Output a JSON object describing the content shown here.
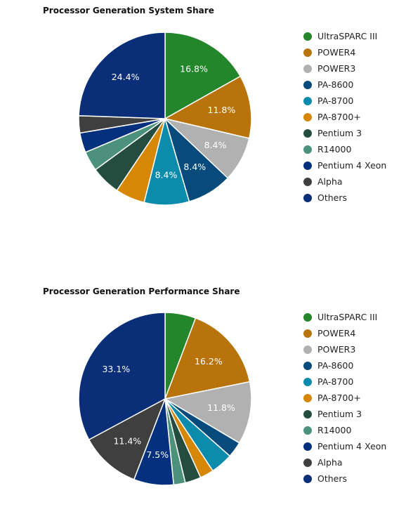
{
  "colors": {
    "UltraSPARC III": "#23862a",
    "POWER4": "#b8740b",
    "POWER3": "#b1b1b1",
    "PA-8600": "#064b7c",
    "PA-8700": "#0d8bac",
    "PA-8700+": "#d58705",
    "Pentium 3": "#244d40",
    "R14000": "#4b917b",
    "Pentium 4 Xeon": "#05307e",
    "Alpha": "#3f3f3f",
    "Others": "#0a2e78"
  },
  "chart_data": [
    {
      "type": "pie",
      "title": "Processor Generation System Share",
      "labels": [
        "UltraSPARC III",
        "POWER4",
        "POWER3",
        "PA-8600",
        "PA-8700",
        "PA-8700+",
        "Pentium 3",
        "R14000",
        "Pentium 4 Xeon",
        "Alpha",
        "Others"
      ],
      "values": [
        16.8,
        11.8,
        8.4,
        8.4,
        8.4,
        5.5,
        5.5,
        3.7,
        3.7,
        3.2,
        24.4
      ],
      "data_labels": [
        "16.8%",
        "11.8%",
        "8.4%",
        "8.4%",
        "8.4%",
        "",
        "",
        "",
        "",
        "",
        "24.4%"
      ],
      "legend_position": "right"
    },
    {
      "type": "pie",
      "title": "Processor Generation Performance Share",
      "labels": [
        "UltraSPARC III",
        "POWER4",
        "POWER3",
        "PA-8600",
        "PA-8700",
        "PA-8700+",
        "Pentium 3",
        "R14000",
        "Pentium 4 Xeon",
        "Alpha",
        "Others"
      ],
      "values": [
        5.8,
        16.2,
        11.8,
        3.0,
        4.2,
        2.6,
        3.0,
        2.2,
        7.5,
        11.4,
        33.1
      ],
      "data_labels": [
        "",
        "16.2%",
        "11.8%",
        "",
        "",
        "",
        "",
        "",
        "7.5%",
        "11.4%",
        "33.1%"
      ],
      "legend_position": "right"
    }
  ]
}
